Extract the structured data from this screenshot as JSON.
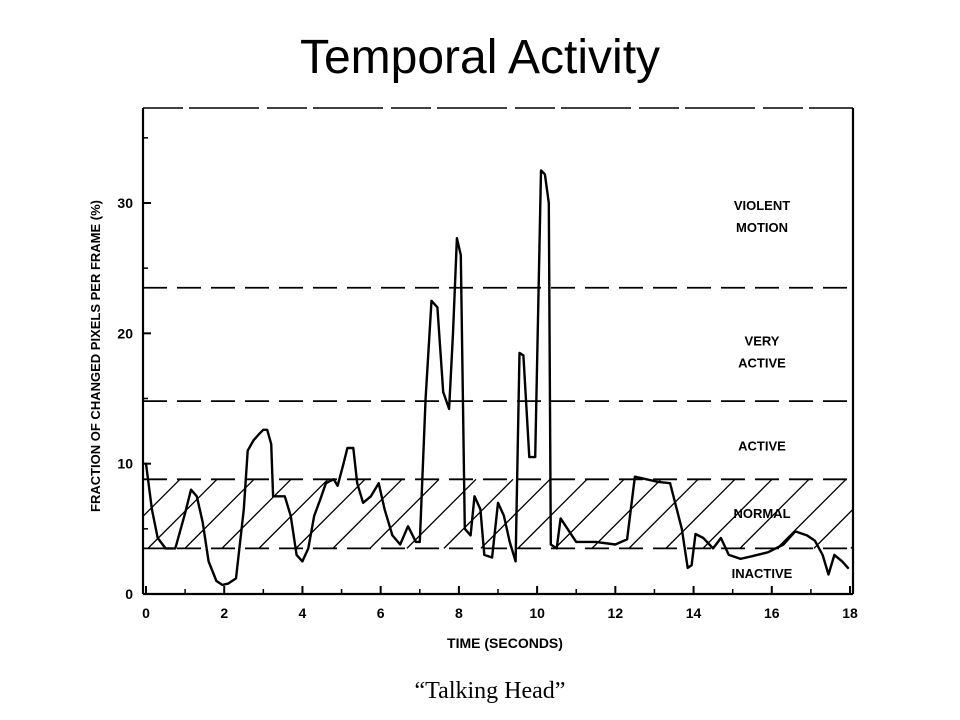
{
  "slide": {
    "title": "Temporal Activity",
    "caption": "“Talking Head”"
  },
  "chart_data": {
    "type": "line",
    "xlabel": "TIME (SECONDS)",
    "ylabel": "FRACTION OF CHANGED PIXELS PER FRAME (%)",
    "xlim": [
      0,
      18
    ],
    "ylim": [
      0,
      37
    ],
    "xticks": [
      0,
      2,
      4,
      6,
      8,
      10,
      12,
      14,
      16,
      18
    ],
    "yticks": [
      0,
      10,
      20,
      30
    ],
    "grid": false,
    "thresholds": [
      3.5,
      8.8,
      14.8,
      23.5
    ],
    "hatched_band": [
      3.5,
      8.8
    ],
    "regions": [
      {
        "label_lines": [
          "VIOLENT",
          "MOTION"
        ],
        "y": 29
      },
      {
        "label_lines": [
          "VERY",
          "ACTIVE"
        ],
        "y": 18.6
      },
      {
        "label_lines": [
          "ACTIVE"
        ],
        "y": 11.4
      },
      {
        "label_lines": [
          "NORMAL"
        ],
        "y": 6.2
      },
      {
        "label_lines": [
          "INACTIVE"
        ],
        "y": 1.6
      }
    ],
    "series": [
      {
        "x": [
          0,
          0.15,
          0.3,
          0.5,
          0.75,
          1.0,
          1.15,
          1.3,
          1.45,
          1.6,
          1.8,
          1.95,
          2.1,
          2.3,
          2.5,
          2.6,
          2.75,
          2.9,
          3.0,
          3.1,
          3.2,
          3.25,
          3.35,
          3.55,
          3.7,
          3.85,
          4.0,
          4.15,
          4.3,
          4.45,
          4.6,
          4.8,
          4.9,
          5.05,
          5.15,
          5.3,
          5.4,
          5.55,
          5.75,
          5.95,
          6.1,
          6.3,
          6.5,
          6.7,
          6.9,
          7.0,
          7.15,
          7.3,
          7.45,
          7.6,
          7.75,
          7.85,
          7.95,
          8.05,
          8.15,
          8.3,
          8.4,
          8.55,
          8.65,
          8.85,
          9.0,
          9.15,
          9.3,
          9.45,
          9.55,
          9.65,
          9.8,
          9.95,
          10.1,
          10.2,
          10.3,
          10.35,
          10.5,
          10.6,
          11.0,
          11.5,
          12.0,
          12.3,
          12.5,
          12.8,
          13.1,
          13.4,
          13.7,
          13.85,
          13.95,
          14.05,
          14.25,
          14.5,
          14.7,
          14.9,
          15.2,
          15.5,
          15.9,
          16.3,
          16.6,
          16.9,
          17.1,
          17.3,
          17.45,
          17.6,
          17.8,
          17.95
        ],
        "y": [
          10,
          6.5,
          4.3,
          3.5,
          3.5,
          6.2,
          8.0,
          7.5,
          5.5,
          2.5,
          1.0,
          0.7,
          0.8,
          1.2,
          6.5,
          11.0,
          11.8,
          12.3,
          12.6,
          12.6,
          11.5,
          7.5,
          7.5,
          7.5,
          6.0,
          3.0,
          2.5,
          3.5,
          6.0,
          7.2,
          8.5,
          8.8,
          8.3,
          10.0,
          11.2,
          11.2,
          8.5,
          7.0,
          7.5,
          8.5,
          6.5,
          4.5,
          3.8,
          5.2,
          4.0,
          4.0,
          15.0,
          22.5,
          22.0,
          15.5,
          14.2,
          20.0,
          27.3,
          26.0,
          5.0,
          4.5,
          7.5,
          6.5,
          3.0,
          2.8,
          7.0,
          6.0,
          4.0,
          2.5,
          18.5,
          18.3,
          10.5,
          10.5,
          32.5,
          32.2,
          30.0,
          3.8,
          3.5,
          5.8,
          4.0,
          4.0,
          3.8,
          4.2,
          9.0,
          8.8,
          8.6,
          8.5,
          5.0,
          2.0,
          2.2,
          4.6,
          4.3,
          3.5,
          4.3,
          3.0,
          2.7,
          2.9,
          3.2,
          3.8,
          4.8,
          4.5,
          4.1,
          3.0,
          1.5,
          3.0,
          2.5,
          2.0
        ]
      }
    ]
  }
}
